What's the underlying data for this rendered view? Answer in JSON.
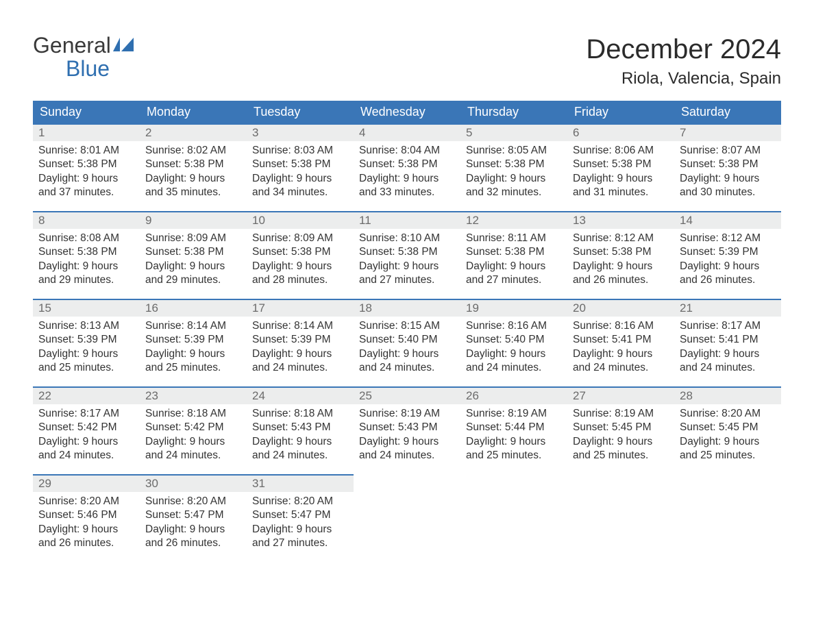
{
  "brand": {
    "word1": "General",
    "word2": "Blue",
    "flag_color": "#2f6fb0"
  },
  "title": "December 2024",
  "location": "Riola, Valencia, Spain",
  "colors": {
    "header_bg": "#3a76b7",
    "header_text": "#ffffff",
    "daynum_bg": "#eceded",
    "daynum_text": "#6b6b6b",
    "cell_border": "#3a76b7",
    "body_text": "#333333",
    "page_bg": "#ffffff"
  },
  "typography": {
    "title_fontsize": 40,
    "location_fontsize": 24,
    "weekday_fontsize": 18,
    "daynum_fontsize": 17,
    "body_fontsize": 15.5
  },
  "weekdays": [
    "Sunday",
    "Monday",
    "Tuesday",
    "Wednesday",
    "Thursday",
    "Friday",
    "Saturday"
  ],
  "labels": {
    "sunrise": "Sunrise",
    "sunset": "Sunset",
    "daylight": "Daylight"
  },
  "weeks": [
    [
      {
        "n": "1",
        "sunrise": "8:01 AM",
        "sunset": "5:38 PM",
        "day_h": "9",
        "day_m": "37"
      },
      {
        "n": "2",
        "sunrise": "8:02 AM",
        "sunset": "5:38 PM",
        "day_h": "9",
        "day_m": "35"
      },
      {
        "n": "3",
        "sunrise": "8:03 AM",
        "sunset": "5:38 PM",
        "day_h": "9",
        "day_m": "34"
      },
      {
        "n": "4",
        "sunrise": "8:04 AM",
        "sunset": "5:38 PM",
        "day_h": "9",
        "day_m": "33"
      },
      {
        "n": "5",
        "sunrise": "8:05 AM",
        "sunset": "5:38 PM",
        "day_h": "9",
        "day_m": "32"
      },
      {
        "n": "6",
        "sunrise": "8:06 AM",
        "sunset": "5:38 PM",
        "day_h": "9",
        "day_m": "31"
      },
      {
        "n": "7",
        "sunrise": "8:07 AM",
        "sunset": "5:38 PM",
        "day_h": "9",
        "day_m": "30"
      }
    ],
    [
      {
        "n": "8",
        "sunrise": "8:08 AM",
        "sunset": "5:38 PM",
        "day_h": "9",
        "day_m": "29"
      },
      {
        "n": "9",
        "sunrise": "8:09 AM",
        "sunset": "5:38 PM",
        "day_h": "9",
        "day_m": "29"
      },
      {
        "n": "10",
        "sunrise": "8:09 AM",
        "sunset": "5:38 PM",
        "day_h": "9",
        "day_m": "28"
      },
      {
        "n": "11",
        "sunrise": "8:10 AM",
        "sunset": "5:38 PM",
        "day_h": "9",
        "day_m": "27"
      },
      {
        "n": "12",
        "sunrise": "8:11 AM",
        "sunset": "5:38 PM",
        "day_h": "9",
        "day_m": "27"
      },
      {
        "n": "13",
        "sunrise": "8:12 AM",
        "sunset": "5:38 PM",
        "day_h": "9",
        "day_m": "26"
      },
      {
        "n": "14",
        "sunrise": "8:12 AM",
        "sunset": "5:39 PM",
        "day_h": "9",
        "day_m": "26"
      }
    ],
    [
      {
        "n": "15",
        "sunrise": "8:13 AM",
        "sunset": "5:39 PM",
        "day_h": "9",
        "day_m": "25"
      },
      {
        "n": "16",
        "sunrise": "8:14 AM",
        "sunset": "5:39 PM",
        "day_h": "9",
        "day_m": "25"
      },
      {
        "n": "17",
        "sunrise": "8:14 AM",
        "sunset": "5:39 PM",
        "day_h": "9",
        "day_m": "24"
      },
      {
        "n": "18",
        "sunrise": "8:15 AM",
        "sunset": "5:40 PM",
        "day_h": "9",
        "day_m": "24"
      },
      {
        "n": "19",
        "sunrise": "8:16 AM",
        "sunset": "5:40 PM",
        "day_h": "9",
        "day_m": "24"
      },
      {
        "n": "20",
        "sunrise": "8:16 AM",
        "sunset": "5:41 PM",
        "day_h": "9",
        "day_m": "24"
      },
      {
        "n": "21",
        "sunrise": "8:17 AM",
        "sunset": "5:41 PM",
        "day_h": "9",
        "day_m": "24"
      }
    ],
    [
      {
        "n": "22",
        "sunrise": "8:17 AM",
        "sunset": "5:42 PM",
        "day_h": "9",
        "day_m": "24"
      },
      {
        "n": "23",
        "sunrise": "8:18 AM",
        "sunset": "5:42 PM",
        "day_h": "9",
        "day_m": "24"
      },
      {
        "n": "24",
        "sunrise": "8:18 AM",
        "sunset": "5:43 PM",
        "day_h": "9",
        "day_m": "24"
      },
      {
        "n": "25",
        "sunrise": "8:19 AM",
        "sunset": "5:43 PM",
        "day_h": "9",
        "day_m": "24"
      },
      {
        "n": "26",
        "sunrise": "8:19 AM",
        "sunset": "5:44 PM",
        "day_h": "9",
        "day_m": "25"
      },
      {
        "n": "27",
        "sunrise": "8:19 AM",
        "sunset": "5:45 PM",
        "day_h": "9",
        "day_m": "25"
      },
      {
        "n": "28",
        "sunrise": "8:20 AM",
        "sunset": "5:45 PM",
        "day_h": "9",
        "day_m": "25"
      }
    ],
    [
      {
        "n": "29",
        "sunrise": "8:20 AM",
        "sunset": "5:46 PM",
        "day_h": "9",
        "day_m": "26"
      },
      {
        "n": "30",
        "sunrise": "8:20 AM",
        "sunset": "5:47 PM",
        "day_h": "9",
        "day_m": "26"
      },
      {
        "n": "31",
        "sunrise": "8:20 AM",
        "sunset": "5:47 PM",
        "day_h": "9",
        "day_m": "27"
      },
      null,
      null,
      null,
      null
    ]
  ]
}
